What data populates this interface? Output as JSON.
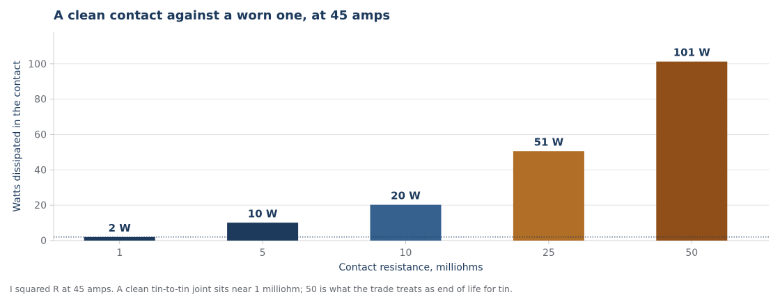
{
  "chart_data": {
    "type": "bar",
    "title": "A clean contact against a worn one, at 45 amps",
    "xlabel": "Contact resistance, milliohms",
    "ylabel": "Watts dissipated in the contact",
    "categories": [
      "1",
      "5",
      "10",
      "25",
      "50"
    ],
    "values": [
      2.025,
      10.125,
      20.25,
      50.625,
      101.25
    ],
    "data_labels": [
      "2 W",
      "10 W",
      "20 W",
      "51 W",
      "101 W"
    ],
    "colors": [
      "#1d3a5c",
      "#1d3a5c",
      "#36618e",
      "#b06e26",
      "#904f18"
    ],
    "ylim": [
      0,
      118
    ],
    "yticks": [
      "0",
      "20",
      "40",
      "60",
      "80",
      "100"
    ],
    "reference_line": 2.025,
    "grid": true,
    "legend": "none"
  },
  "note": "I squared R at 45 amps. A clean tin-to-tin joint sits near 1 milliohm; 50 is what the trade treats as end of life for tin."
}
